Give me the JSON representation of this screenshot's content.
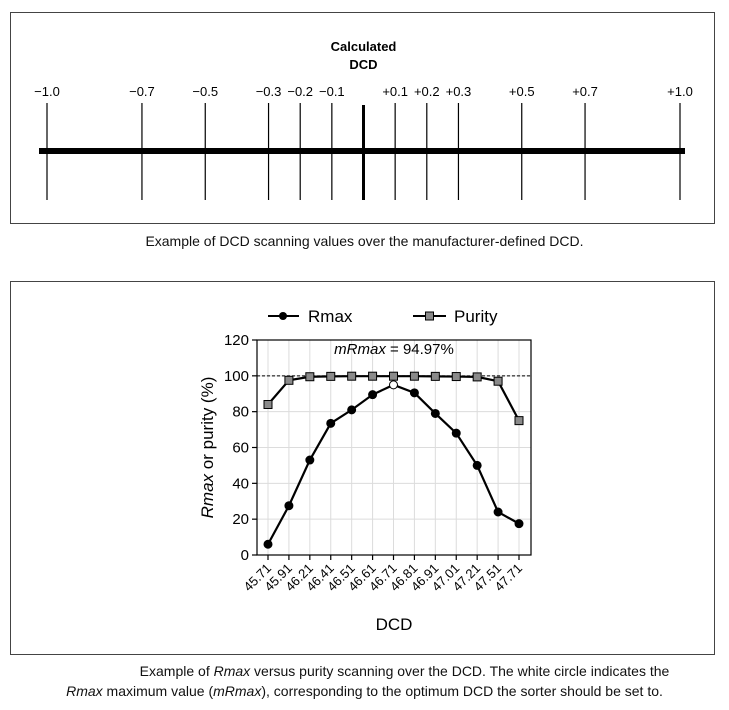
{
  "chart_data": [
    {
      "type": "number-line",
      "title": "Calculated DCD",
      "title_lines": [
        "Calculated",
        "DCD"
      ],
      "ticks": [
        {
          "value": -1.0,
          "label": "−1.0"
        },
        {
          "value": -0.7,
          "label": "−0.7"
        },
        {
          "value": -0.5,
          "label": "−0.5"
        },
        {
          "value": -0.3,
          "label": "−0.3"
        },
        {
          "value": -0.2,
          "label": "−0.2"
        },
        {
          "value": -0.1,
          "label": "−0.1"
        },
        {
          "value": 0.0,
          "label": ""
        },
        {
          "value": 0.1,
          "label": "+0.1"
        },
        {
          "value": 0.2,
          "label": "+0.2"
        },
        {
          "value": 0.3,
          "label": "+0.3"
        },
        {
          "value": 0.5,
          "label": "+0.5"
        },
        {
          "value": 0.7,
          "label": "+0.7"
        },
        {
          "value": 1.0,
          "label": "+1.0"
        }
      ],
      "range": [
        -1.0,
        1.0
      ],
      "center_value": 0.0
    },
    {
      "type": "line",
      "categories": [
        "45.71",
        "45.91",
        "46.21",
        "46.41",
        "46.51",
        "46.61",
        "46.71",
        "46.81",
        "46.91",
        "47.01",
        "47.21",
        "47.51",
        "47.71"
      ],
      "series": [
        {
          "name": "Rmax",
          "marker": "circle",
          "values": [
            6,
            27.5,
            53,
            73.5,
            81,
            89.5,
            94.97,
            90.5,
            79,
            68,
            50,
            24,
            17.5
          ]
        },
        {
          "name": "Purity",
          "marker": "square",
          "values": [
            84,
            97.5,
            99.5,
            99.7,
            99.8,
            99.8,
            99.8,
            99.8,
            99.7,
            99.6,
            99.4,
            97,
            75
          ]
        }
      ],
      "highlight": {
        "series": "Rmax",
        "index": 6,
        "value": 94.97,
        "style": "white-circle"
      },
      "annotation_prefix": "mRmax",
      "annotation_value": " = 94.97%",
      "reference_line": 100,
      "xlabel": "DCD",
      "ylabel_italic": "Rmax",
      "ylabel_rest": " or purity (%)",
      "yticks": [
        0,
        20,
        40,
        60,
        80,
        100,
        120
      ],
      "ylim": [
        0,
        120
      ],
      "grid": true,
      "legend_position": "top"
    }
  ],
  "captions": {
    "top": "Example of DCD scanning values over the manufacturer-defined DCD.",
    "bottom_line1_before": "Example of ",
    "bottom_line1_italic": "Rmax",
    "bottom_line1_after": " versus purity scanning over the DCD. The white circle indicates the",
    "bottom_line2_italic": "Rmax",
    "bottom_line2_mid": " maximum value (",
    "bottom_line2_italic2": "mRmax",
    "bottom_line2_after": "), corresponding to the optimum DCD the sorter should be set to."
  }
}
